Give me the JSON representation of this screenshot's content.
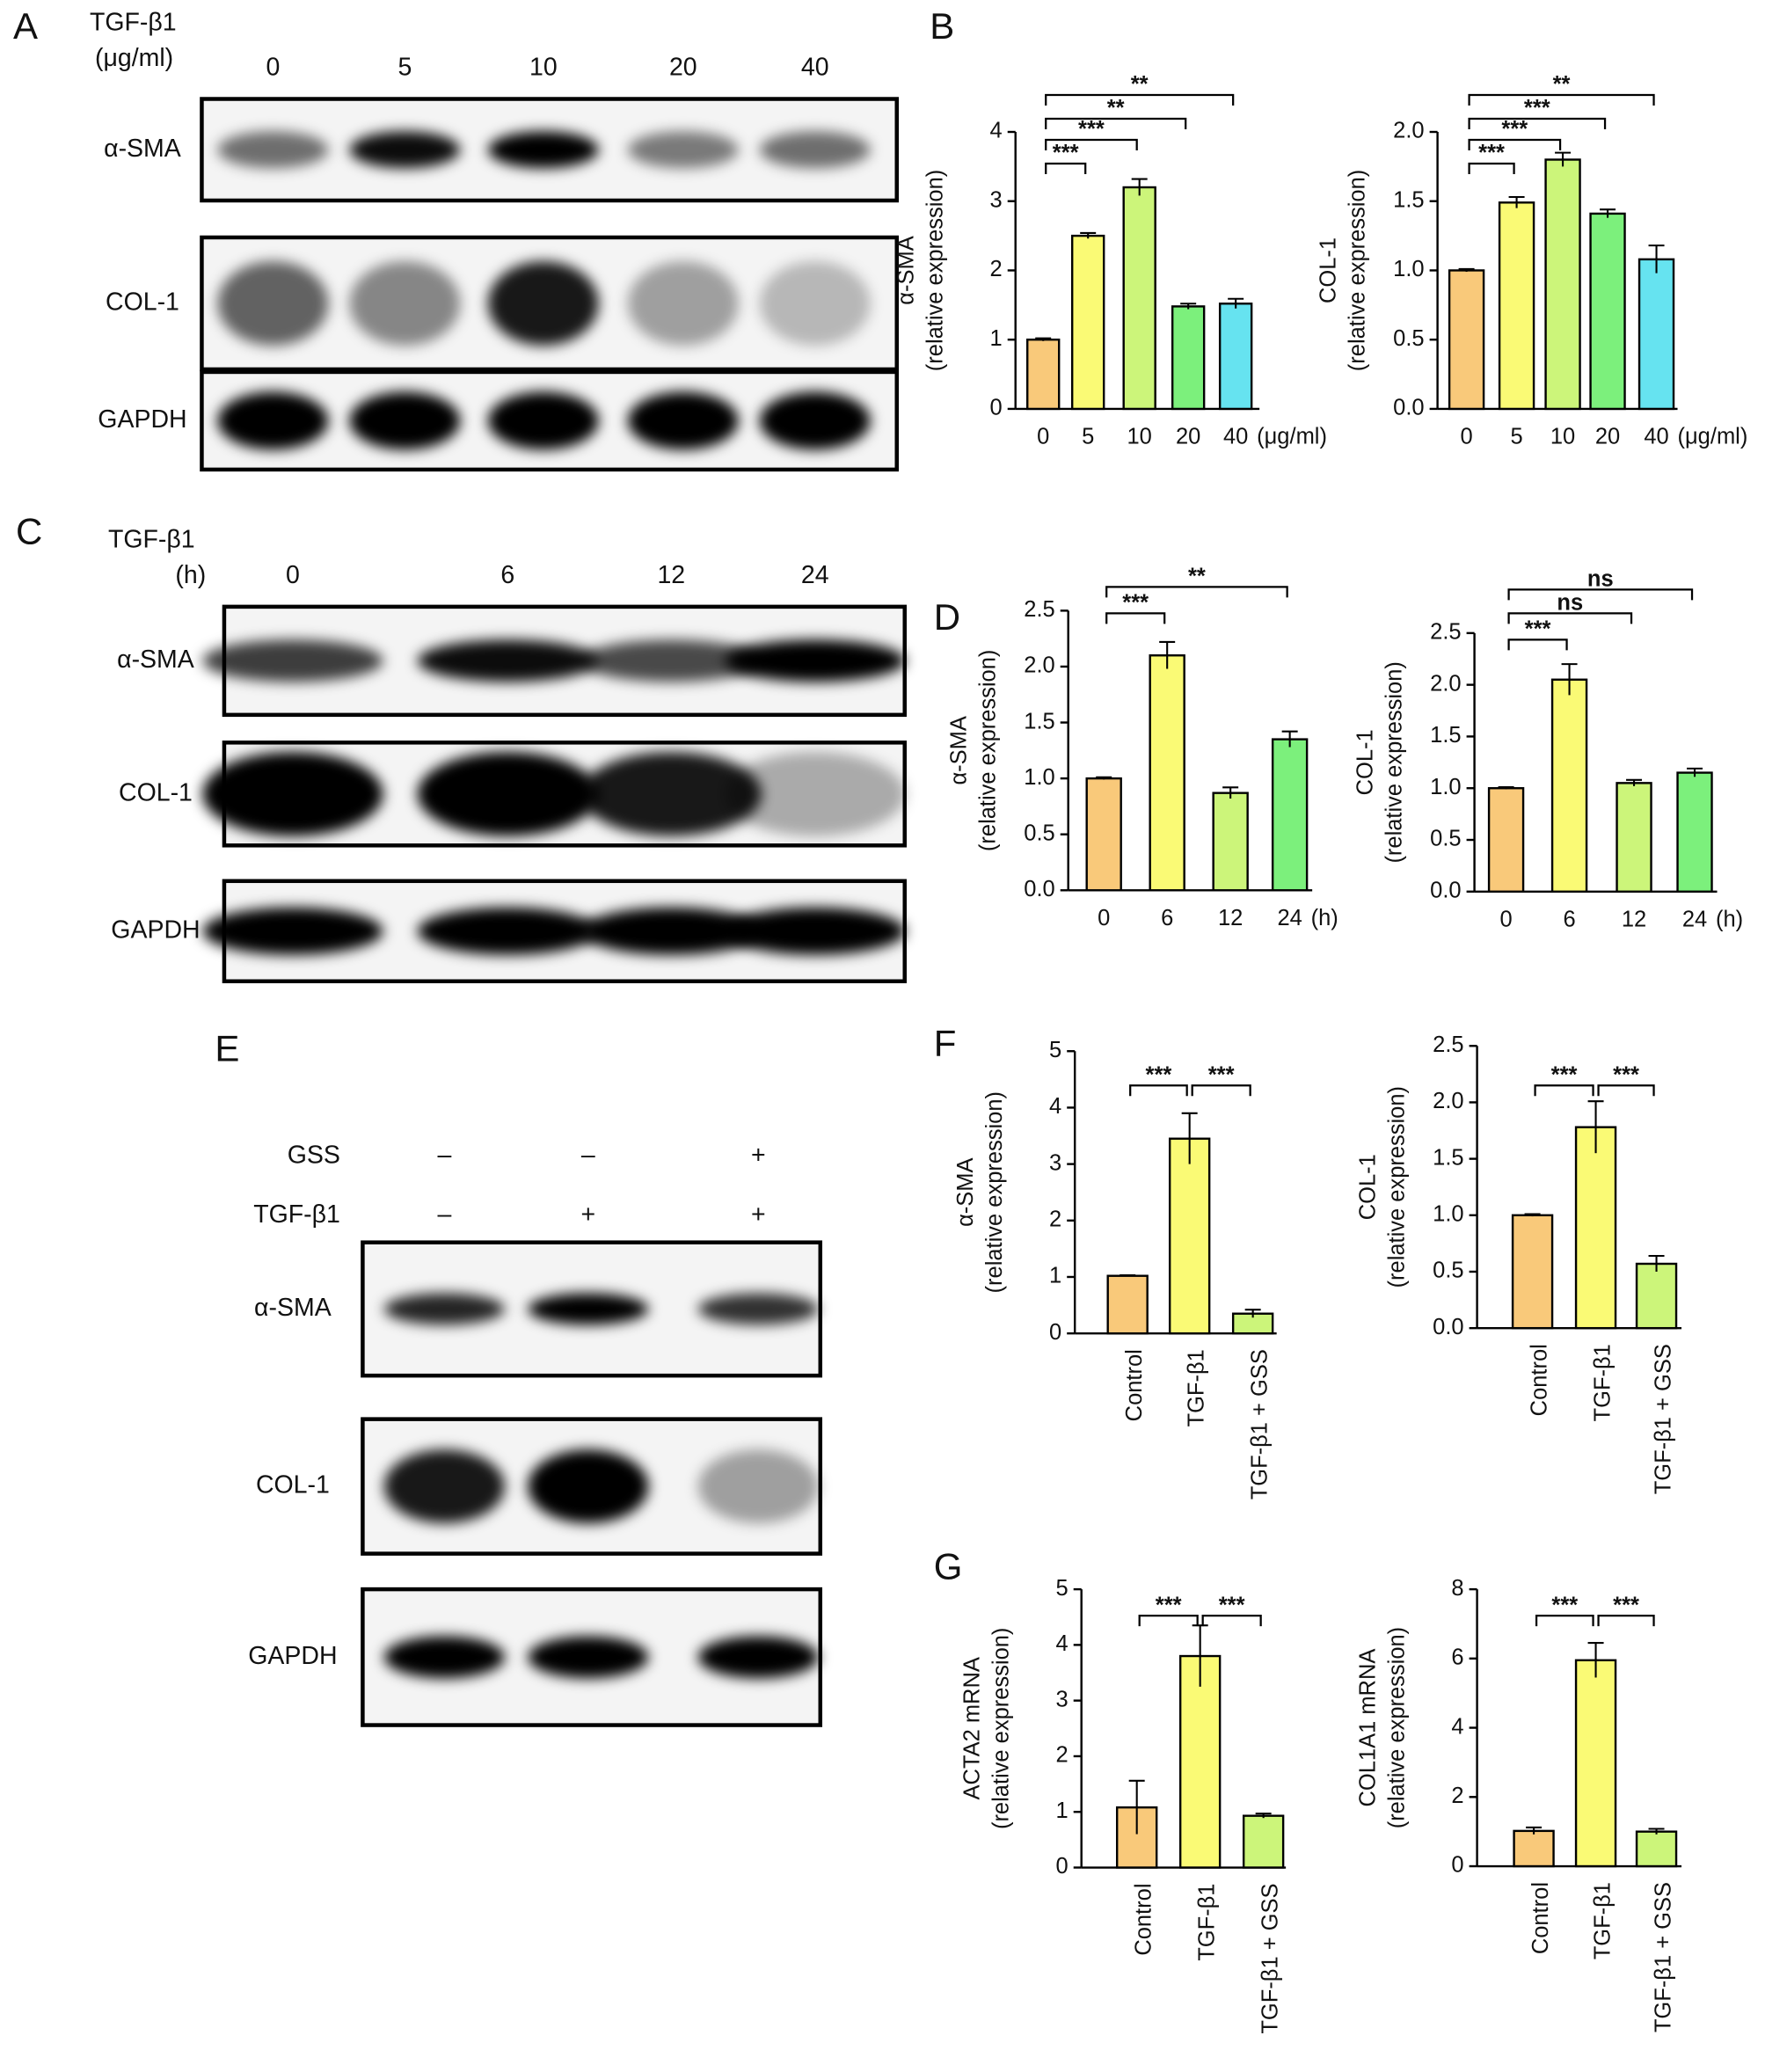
{
  "panel_labels": [
    "A",
    "B",
    "C",
    "D",
    "E",
    "F",
    "G"
  ],
  "blots": [
    {
      "treatment": [
        "TGF-β1",
        "(μg/ml)"
      ],
      "lanes": [
        "0",
        "5",
        "10",
        "20",
        "40"
      ],
      "rows": [
        "α-SMA",
        "COL-1",
        "GAPDH"
      ]
    },
    {
      "treatment": [
        "TGF-β1",
        "(h)"
      ],
      "lanes": [
        "0",
        "6",
        "12",
        "24"
      ],
      "rows": [
        "α-SMA",
        "COL-1",
        "GAPDH"
      ]
    },
    {
      "conditions": [
        {
          "name": "GSS",
          "lanes": [
            "–",
            "–",
            "+"
          ]
        },
        {
          "name": "TGF-β1",
          "lanes": [
            "–",
            "+",
            "+"
          ]
        }
      ],
      "rows": [
        "α-SMA",
        "COL-1",
        "GAPDH"
      ]
    }
  ],
  "chart_data": [
    {
      "type": "bar",
      "ylabel": [
        "α-SMA",
        "(relative expression)"
      ],
      "categories": [
        "0",
        "5",
        "10",
        "20",
        "40"
      ],
      "x_unit": "(μg/ml)",
      "values": [
        1,
        2.5,
        3.2,
        1.48,
        1.52
      ],
      "errors": [
        0.02,
        0.04,
        0.12,
        0.04,
        0.07
      ],
      "colors": [
        "#f9c97a",
        "#fafa75",
        "#ccf57a",
        "#7cf07c",
        "#66e3f0"
      ],
      "ylim": [
        0,
        4
      ],
      "yticks": [
        0,
        1,
        2,
        3,
        4
      ],
      "significance": [
        {
          "between": [
            "0",
            "5"
          ],
          "label": "***"
        },
        {
          "between": [
            "0",
            "10"
          ],
          "label": "***"
        },
        {
          "between": [
            "0",
            "20"
          ],
          "label": "**"
        },
        {
          "between": [
            "0",
            "40"
          ],
          "label": "**"
        }
      ]
    },
    {
      "type": "bar",
      "ylabel": [
        "COL-1",
        "(relative expression)"
      ],
      "categories": [
        "0",
        "5",
        "10",
        "20",
        "40"
      ],
      "x_unit": "(μg/ml)",
      "values": [
        1,
        1.49,
        1.8,
        1.41,
        1.08
      ],
      "errors": [
        0.01,
        0.04,
        0.05,
        0.03,
        0.1
      ],
      "colors": [
        "#f9c97a",
        "#fafa75",
        "#ccf57a",
        "#7cf07c",
        "#66e3f0"
      ],
      "ylim": [
        0,
        2
      ],
      "yticks": [
        {
          "value": 0,
          "label": "0.0"
        },
        {
          "value": 0.5,
          "label": "0.5"
        },
        {
          "value": 1,
          "label": "1.0"
        },
        {
          "value": 1.5,
          "label": "1.5"
        },
        {
          "value": 2,
          "label": "2.0"
        }
      ],
      "significance": [
        {
          "between": [
            "0",
            "5"
          ],
          "label": "***"
        },
        {
          "between": [
            "0",
            "10"
          ],
          "label": "***"
        },
        {
          "between": [
            "0",
            "20"
          ],
          "label": "***"
        },
        {
          "between": [
            "0",
            "40"
          ],
          "label": "**"
        }
      ]
    },
    {
      "type": "bar",
      "ylabel": [
        "α-SMA",
        "(relative expression)"
      ],
      "categories": [
        "0",
        "6",
        "12",
        "24"
      ],
      "x_unit": "(h)",
      "values": [
        1,
        2.1,
        0.87,
        1.35
      ],
      "errors": [
        0.01,
        0.12,
        0.05,
        0.07
      ],
      "colors": [
        "#f9c97a",
        "#fafa75",
        "#ccf57a",
        "#7cf07c"
      ],
      "ylim": [
        0,
        2.5
      ],
      "yticks": [
        {
          "value": 0,
          "label": "0.0"
        },
        {
          "value": 0.5,
          "label": "0.5"
        },
        {
          "value": 1,
          "label": "1.0"
        },
        {
          "value": 1.5,
          "label": "1.5"
        },
        {
          "value": 2,
          "label": "2.0"
        },
        2.5
      ],
      "significance": [
        {
          "between": [
            "0",
            "6"
          ],
          "label": "***"
        },
        {
          "between": [
            "0",
            "24"
          ],
          "label": "**"
        }
      ]
    },
    {
      "type": "bar",
      "ylabel": [
        "COL-1",
        "(relative expression)"
      ],
      "categories": [
        "0",
        "6",
        "12",
        "24"
      ],
      "x_unit": "(h)",
      "values": [
        1,
        2.05,
        1.05,
        1.15
      ],
      "errors": [
        0.01,
        0.15,
        0.03,
        0.04
      ],
      "colors": [
        "#f9c97a",
        "#fafa75",
        "#ccf57a",
        "#7cf07c"
      ],
      "ylim": [
        0,
        2.5
      ],
      "yticks": [
        {
          "value": 0,
          "label": "0.0"
        },
        {
          "value": 0.5,
          "label": "0.5"
        },
        {
          "value": 1,
          "label": "1.0"
        },
        {
          "value": 1.5,
          "label": "1.5"
        },
        {
          "value": 2,
          "label": "2.0"
        },
        2.5
      ],
      "significance": [
        {
          "between": [
            "0",
            "6"
          ],
          "label": "***"
        },
        {
          "between": [
            "0",
            "12"
          ],
          "label": "ns"
        },
        {
          "between": [
            "0",
            "24"
          ],
          "label": "ns"
        }
      ]
    },
    {
      "type": "bar",
      "ylabel": [
        "α-SMA",
        "(relative expression)"
      ],
      "categories": [
        "Control",
        "TGF-β1",
        "TGF-β1 + GSS"
      ],
      "rotate_labels": true,
      "values": [
        1.02,
        3.45,
        0.35
      ],
      "errors": [
        0.01,
        0.45,
        0.07
      ],
      "colors": [
        "#f9c97a",
        "#fafa75",
        "#ccf57a"
      ],
      "ylim": [
        0,
        5
      ],
      "yticks": [
        0,
        1,
        2,
        3,
        4,
        5
      ],
      "significance": [
        {
          "between": [
            "Control",
            "TGF-β1"
          ],
          "label": "***"
        },
        {
          "between": [
            "TGF-β1",
            "TGF-β1 + GSS"
          ],
          "label": "***"
        }
      ]
    },
    {
      "type": "bar",
      "ylabel": [
        "COL-1",
        "(relative expression)"
      ],
      "categories": [
        "Control",
        "TGF-β1",
        "TGF-β1 + GSS"
      ],
      "rotate_labels": true,
      "values": [
        1,
        1.78,
        0.57
      ],
      "errors": [
        0.01,
        0.23,
        0.07
      ],
      "colors": [
        "#f9c97a",
        "#fafa75",
        "#ccf57a"
      ],
      "ylim": [
        0,
        2.5
      ],
      "yticks": [
        {
          "value": 0,
          "label": "0.0"
        },
        {
          "value": 0.5,
          "label": "0.5"
        },
        {
          "value": 1,
          "label": "1.0"
        },
        {
          "value": 1.5,
          "label": "1.5"
        },
        {
          "value": 2,
          "label": "2.0"
        },
        2.5
      ],
      "significance": [
        {
          "between": [
            "Control",
            "TGF-β1"
          ],
          "label": "***"
        },
        {
          "between": [
            "TGF-β1",
            "TGF-β1 + GSS"
          ],
          "label": "***"
        }
      ]
    },
    {
      "type": "bar",
      "ylabel": [
        "ACTA2 mRNA",
        "(relative expression)"
      ],
      "categories": [
        "Control",
        "TGF-β1",
        "TGF-β1 + GSS"
      ],
      "rotate_labels": true,
      "values": [
        1.08,
        3.8,
        0.93
      ],
      "errors": [
        0.48,
        0.55,
        0.04
      ],
      "colors": [
        "#f9c97a",
        "#fafa75",
        "#ccf57a"
      ],
      "ylim": [
        0,
        5
      ],
      "yticks": [
        0,
        1,
        2,
        3,
        4,
        5
      ],
      "significance": [
        {
          "between": [
            "Control",
            "TGF-β1"
          ],
          "label": "***"
        },
        {
          "between": [
            "TGF-β1",
            "TGF-β1 + GSS"
          ],
          "label": "***"
        }
      ]
    },
    {
      "type": "bar",
      "ylabel": [
        "COL1A1 mRNA",
        "(relative expression)"
      ],
      "categories": [
        "Control",
        "TGF-β1",
        "TGF-β1 + GSS"
      ],
      "rotate_labels": true,
      "values": [
        1.02,
        5.95,
        1
      ],
      "errors": [
        0.1,
        0.5,
        0.08
      ],
      "colors": [
        "#f9c97a",
        "#fafa75",
        "#ccf57a"
      ],
      "ylim": [
        0,
        8
      ],
      "yticks": [
        0,
        2,
        4,
        6,
        8
      ],
      "significance": [
        {
          "between": [
            "Control",
            "TGF-β1"
          ],
          "label": "***"
        },
        {
          "between": [
            "TGF-β1",
            "TGF-β1 + GSS"
          ],
          "label": "***"
        }
      ]
    }
  ]
}
